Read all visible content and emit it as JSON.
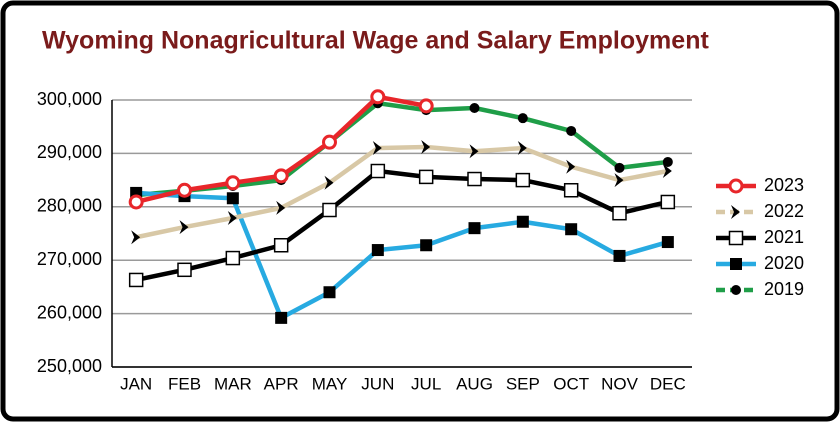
{
  "chart_data": {
    "type": "line",
    "title": "Wyoming Nonagricultural Wage and Salary Employment",
    "categories": [
      "JAN",
      "FEB",
      "MAR",
      "APR",
      "MAY",
      "JUN",
      "JUL",
      "AUG",
      "SEP",
      "OCT",
      "NOV",
      "DEC"
    ],
    "series": [
      {
        "name": "2023",
        "color": "#e8262a",
        "marker": "circle-open",
        "values": [
          280900,
          283100,
          284500,
          285800,
          292100,
          300600,
          298900,
          null,
          null,
          null,
          null,
          null
        ]
      },
      {
        "name": "2022",
        "color": "#d8c8a6",
        "marker": "chevron",
        "values": [
          274300,
          276200,
          277900,
          279800,
          284500,
          291000,
          291200,
          290400,
          291000,
          287500,
          285000,
          286700
        ]
      },
      {
        "name": "2021",
        "color": "#000000",
        "marker": "square-open",
        "values": [
          266300,
          268200,
          270400,
          272800,
          279400,
          286700,
          285600,
          285200,
          285000,
          283100,
          278800,
          280900
        ]
      },
      {
        "name": "2020",
        "color": "#27aae1",
        "marker": "square",
        "values": [
          282600,
          282000,
          281600,
          259200,
          264000,
          271900,
          272800,
          276000,
          277200,
          275800,
          270800,
          273400
        ]
      },
      {
        "name": "2019",
        "color": "#1f9e48",
        "marker": "circle",
        "values": [
          282200,
          283000,
          283900,
          285000,
          292100,
          299400,
          298100,
          298500,
          296600,
          294200,
          287300,
          288400
        ]
      }
    ],
    "ylim": [
      250000,
      300000
    ],
    "yticks": [
      {
        "value": 250000,
        "label": "250,000"
      },
      {
        "value": 260000,
        "label": "260,000"
      },
      {
        "value": 270000,
        "label": "270,000"
      },
      {
        "value": 280000,
        "label": "280,000"
      },
      {
        "value": 290000,
        "label": "290,000"
      },
      {
        "value": 300000,
        "label": "300,000"
      }
    ],
    "grid": true,
    "legend": "right"
  }
}
